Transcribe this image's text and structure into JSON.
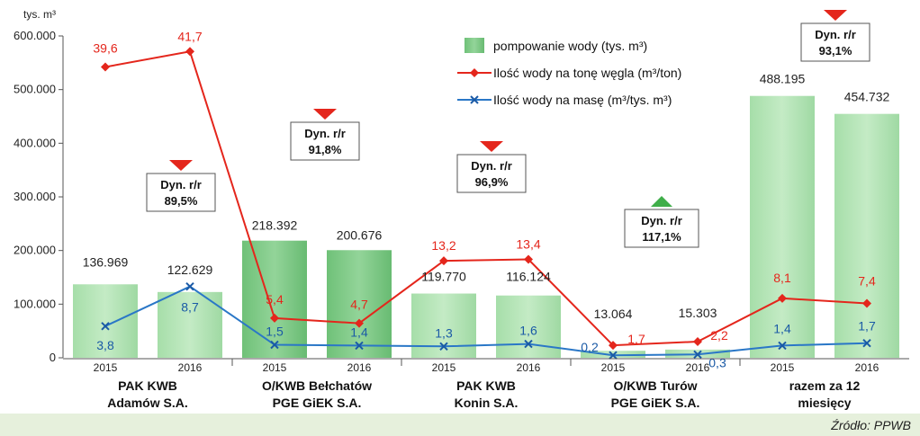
{
  "chart_data": {
    "type": "bar",
    "y_unit_label": "tys. m³",
    "y_ticks": [
      "600.000",
      "500.000",
      "400.000",
      "300.000",
      "200.000",
      "100.000",
      "0"
    ],
    "ylim": [
      0,
      600000
    ],
    "years": [
      "2015",
      "2016"
    ],
    "groups": [
      {
        "label": [
          "PAK KWB",
          "Adamów S.A."
        ],
        "dyn": "89,5%",
        "trend": "down",
        "pumping": [
          136969,
          122629
        ],
        "pumping_labels": [
          "136.969",
          "122.629"
        ],
        "per_ton": [
          39.6,
          41.7
        ],
        "per_ton_labels": [
          "39,6",
          "41,7"
        ],
        "per_mass": [
          3.8,
          8.7
        ],
        "per_mass_labels": [
          "3,8",
          "8,7"
        ]
      },
      {
        "label": [
          "O/KWB Bełchatów",
          "PGE GiEK S.A."
        ],
        "dyn": "91,8%",
        "trend": "down",
        "pumping": [
          218392,
          200676
        ],
        "pumping_labels": [
          "218.392",
          "200.676"
        ],
        "per_ton": [
          5.4,
          4.7
        ],
        "per_ton_labels": [
          "5,4",
          "4,7"
        ],
        "per_mass": [
          1.5,
          1.4
        ],
        "per_mass_labels": [
          "1,5",
          "1,4"
        ]
      },
      {
        "label": [
          "PAK KWB",
          "Konin S.A."
        ],
        "dyn": "96,9%",
        "trend": "down",
        "pumping": [
          119770,
          116124
        ],
        "pumping_labels": [
          "119.770",
          "116.124"
        ],
        "per_ton": [
          13.2,
          13.4
        ],
        "per_ton_labels": [
          "13,2",
          "13,4"
        ],
        "per_mass": [
          1.3,
          1.6
        ],
        "per_mass_labels": [
          "1,3",
          "1,6"
        ]
      },
      {
        "label": [
          "O/KWB Turów",
          "PGE GiEK S.A."
        ],
        "dyn": "117,1%",
        "trend": "up",
        "pumping": [
          13064,
          15303
        ],
        "pumping_labels": [
          "13.064",
          "15.303"
        ],
        "per_ton": [
          1.7,
          2.2
        ],
        "per_ton_labels": [
          "1,7",
          "2,2"
        ],
        "per_mass": [
          0.2,
          0.3
        ],
        "per_mass_labels": [
          "0,2",
          "0,3"
        ]
      },
      {
        "label": [
          "razem za 12",
          "miesięcy"
        ],
        "dyn": "93,1%",
        "trend": "down",
        "pumping": [
          488195,
          454732
        ],
        "pumping_labels": [
          "488.195",
          "454.732"
        ],
        "per_ton": [
          8.1,
          7.4
        ],
        "per_ton_labels": [
          "8,1",
          "7,4"
        ],
        "per_mass": [
          1.4,
          1.7
        ],
        "per_mass_labels": [
          "1,4",
          "1,7"
        ]
      }
    ],
    "series": [
      {
        "name": "pompowanie wody (tys. m³)",
        "kind": "bar"
      },
      {
        "name": "Ilość wody na tonę węgla (m³/ton)",
        "kind": "line"
      },
      {
        "name": "Ilość wody na masę (m³/tys. m³)",
        "kind": "line"
      }
    ],
    "dyn_prefix": "Dyn. r/r",
    "legend_position": "top-right",
    "source": "Źródło: PPWB"
  },
  "colors": {
    "bar_light": "#b3e3b6",
    "bar_dark": "#7fcc86",
    "red_line": "#e4261c",
    "blue_line": "#2a77c7",
    "arrow_down": "#e4261c",
    "arrow_up": "#3fae49",
    "footer_band": "#e6f0dc"
  }
}
